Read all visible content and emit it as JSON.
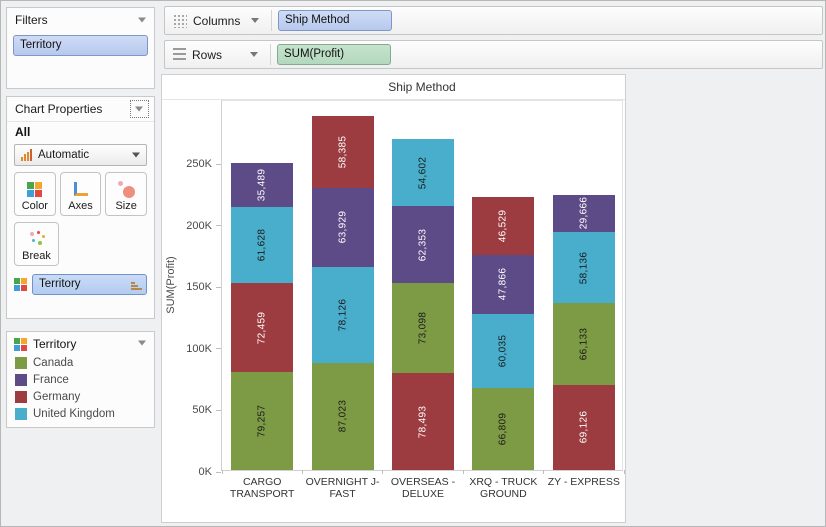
{
  "sidebar": {
    "filters": {
      "title": "Filters",
      "pill": "Territory"
    },
    "chart_properties": {
      "title": "Chart Properties",
      "scope_label": "All",
      "mark_dropdown": "Automatic",
      "color_button": "Color",
      "axes_button": "Axes",
      "size_button": "Size",
      "break_button": "Break",
      "encoding_pill": "Territory"
    },
    "legend": {
      "title": "Territory",
      "items": [
        {
          "label": "Canada",
          "color": "#7d9b45"
        },
        {
          "label": "France",
          "color": "#5c4b87"
        },
        {
          "label": "Germany",
          "color": "#9d3c40"
        },
        {
          "label": "United Kingdom",
          "color": "#48aecb"
        }
      ]
    }
  },
  "shelves": {
    "columns": {
      "label": "Columns",
      "pill": "Ship Method"
    },
    "rows": {
      "label": "Rows",
      "pill": "SUM(Profit)"
    }
  },
  "chart_data": {
    "type": "bar",
    "stacked": true,
    "title": "Ship Method",
    "xlabel": "",
    "ylabel": "SUM(Profit)",
    "ylim": [
      0,
      300000
    ],
    "grid": false,
    "legend_position": "left-panel",
    "yticks": [
      {
        "value": 0,
        "label": "0K"
      },
      {
        "value": 50000,
        "label": "50K"
      },
      {
        "value": 100000,
        "label": "100K"
      },
      {
        "value": 150000,
        "label": "150K"
      },
      {
        "value": 200000,
        "label": "200K"
      },
      {
        "value": 250000,
        "label": "250K"
      }
    ],
    "series_colors": {
      "Canada": "#7d9b45",
      "France": "#5c4b87",
      "Germany": "#9d3c40",
      "United Kingdom": "#48aecb"
    },
    "label_text_colors": {
      "Canada": "#1a1a1a",
      "France": "#ffffff",
      "Germany": "#ffffff",
      "United Kingdom": "#1a1a1a"
    },
    "categories": [
      "CARGO TRANSPORT",
      "OVERNIGHT J-FAST",
      "OVERSEAS - DELUXE",
      "XRQ - TRUCK GROUND",
      "ZY - EXPRESS"
    ],
    "category_label_lines": [
      [
        "CARGO",
        "TRANSPORT"
      ],
      [
        "OVERNIGHT J-",
        "FAST"
      ],
      [
        "OVERSEAS -",
        "DELUXE"
      ],
      [
        "XRQ - TRUCK",
        "GROUND"
      ],
      [
        "ZY - EXPRESS"
      ]
    ],
    "bars": [
      {
        "category": "CARGO TRANSPORT",
        "segments_bottom_to_top": [
          {
            "territory": "Canada",
            "value": 79257,
            "label": "79,257"
          },
          {
            "territory": "Germany",
            "value": 72459,
            "label": "72,459"
          },
          {
            "territory": "United Kingdom",
            "value": 61628,
            "label": "61,628"
          },
          {
            "territory": "France",
            "value": 35489,
            "label": "35,489"
          }
        ]
      },
      {
        "category": "OVERNIGHT J-FAST",
        "segments_bottom_to_top": [
          {
            "territory": "Canada",
            "value": 87023,
            "label": "87,023"
          },
          {
            "territory": "United Kingdom",
            "value": 78126,
            "label": "78,126"
          },
          {
            "territory": "France",
            "value": 63929,
            "label": "63,929"
          },
          {
            "territory": "Germany",
            "value": 58385,
            "label": "58,385"
          }
        ]
      },
      {
        "category": "OVERSEAS - DELUXE",
        "segments_bottom_to_top": [
          {
            "territory": "Germany",
            "value": 78493,
            "label": "78,493"
          },
          {
            "territory": "Canada",
            "value": 73098,
            "label": "73,098"
          },
          {
            "territory": "France",
            "value": 62353,
            "label": "62,353"
          },
          {
            "territory": "United Kingdom",
            "value": 54602,
            "label": "54,602"
          }
        ]
      },
      {
        "category": "XRQ - TRUCK GROUND",
        "segments_bottom_to_top": [
          {
            "territory": "Canada",
            "value": 66809,
            "label": "66,809"
          },
          {
            "territory": "United Kingdom",
            "value": 60035,
            "label": "60,035"
          },
          {
            "territory": "France",
            "value": 47866,
            "label": "47,866"
          },
          {
            "territory": "Germany",
            "value": 46529,
            "label": "46,529"
          }
        ]
      },
      {
        "category": "ZY - EXPRESS",
        "segments_bottom_to_top": [
          {
            "territory": "Germany",
            "value": 69126,
            "label": "69,126"
          },
          {
            "territory": "Canada",
            "value": 66133,
            "label": "66,133"
          },
          {
            "territory": "United Kingdom",
            "value": 58136,
            "label": "58,136"
          },
          {
            "territory": "France",
            "value": 29666,
            "label": "29,666"
          }
        ]
      }
    ]
  }
}
